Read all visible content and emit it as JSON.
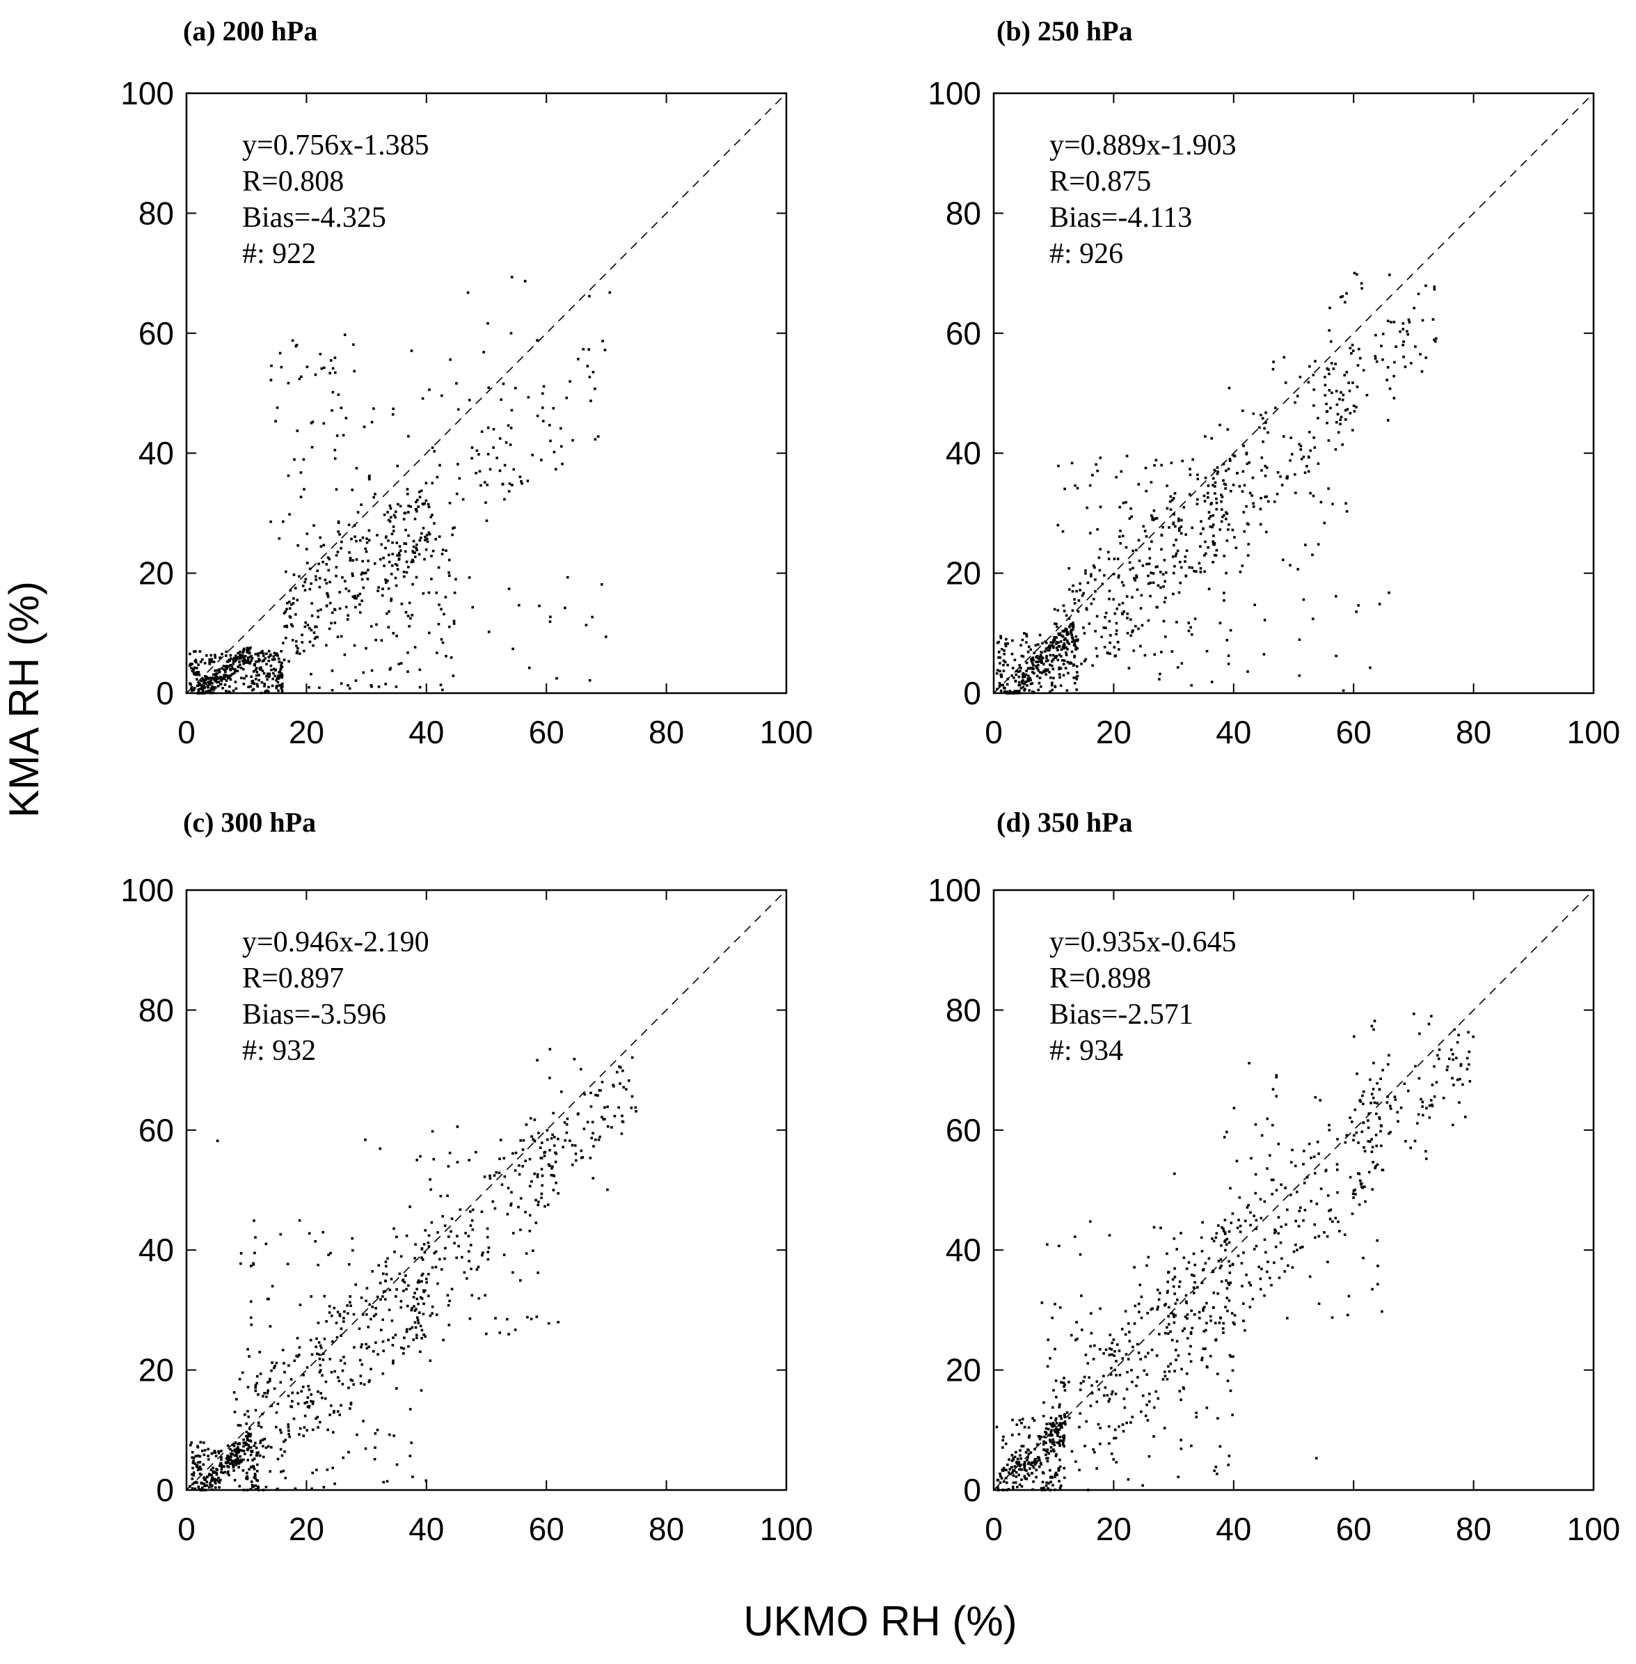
{
  "figure": {
    "ylabel": "KMA RH (%)",
    "xlabel": "UKMO RH (%)",
    "ink_color": "#000000",
    "background": "#ffffff"
  },
  "chart_data": [
    {
      "type": "scatter",
      "panel": "a",
      "title": "(a) 200 hPa",
      "xlim": [
        0,
        100
      ],
      "ylim": [
        0,
        100
      ],
      "xticks": [
        0,
        20,
        40,
        60,
        80,
        100
      ],
      "yticks": [
        0,
        20,
        40,
        60,
        80,
        100
      ],
      "reference_line": "1:1 dashed",
      "stats": {
        "equation": "y=0.756x-1.385",
        "r": "R=0.808",
        "bias": "Bias=-4.325",
        "count": "#: 922"
      },
      "n_points": 922,
      "slope": 0.756,
      "intercept": -1.385,
      "clusters": [
        {
          "x": [
            0.5,
            16
          ],
          "y": [
            0,
            7
          ],
          "count": 380
        },
        {
          "x": [
            16,
            45
          ],
          "y": [
            0,
            30
          ],
          "count": 320
        },
        {
          "x": [
            14,
            55
          ],
          "y": [
            25,
            60
          ],
          "count": 130
        },
        {
          "x": [
            45,
            72
          ],
          "y": [
            35,
            72
          ],
          "count": 60
        },
        {
          "x": [
            28,
            70
          ],
          "y": [
            0,
            20
          ],
          "count": 32
        }
      ]
    },
    {
      "type": "scatter",
      "panel": "b",
      "title": "(b) 250 hPa",
      "xlim": [
        0,
        100
      ],
      "ylim": [
        0,
        100
      ],
      "xticks": [
        0,
        20,
        40,
        60,
        80,
        100
      ],
      "yticks": [
        0,
        20,
        40,
        60,
        80,
        100
      ],
      "reference_line": "1:1 dashed",
      "stats": {
        "equation": "y=0.889x-1.903",
        "r": "R=0.875",
        "bias": "Bias=-4.113",
        "count": "#: 926"
      },
      "n_points": 926,
      "slope": 0.889,
      "intercept": -1.903,
      "clusters": [
        {
          "x": [
            0.5,
            14
          ],
          "y": [
            0,
            10
          ],
          "count": 300
        },
        {
          "x": [
            10,
            40
          ],
          "y": [
            0,
            40
          ],
          "count": 360
        },
        {
          "x": [
            35,
            60
          ],
          "y": [
            20,
            58
          ],
          "count": 160
        },
        {
          "x": [
            55,
            74
          ],
          "y": [
            45,
            71
          ],
          "count": 80
        },
        {
          "x": [
            30,
            66
          ],
          "y": [
            0,
            25
          ],
          "count": 26
        }
      ]
    },
    {
      "type": "scatter",
      "panel": "c",
      "title": "(c) 300 hPa",
      "xlim": [
        0,
        100
      ],
      "ylim": [
        0,
        100
      ],
      "xticks": [
        0,
        20,
        40,
        60,
        80,
        100
      ],
      "yticks": [
        0,
        20,
        40,
        60,
        80,
        100
      ],
      "reference_line": "1:1 dashed",
      "stats": {
        "equation": "y=0.946x-2.190",
        "r": "R=0.897",
        "bias": "Bias=-3.596",
        "count": "#: 932"
      },
      "n_points": 932,
      "slope": 0.946,
      "intercept": -2.19,
      "clusters": [
        {
          "x": [
            0.5,
            12
          ],
          "y": [
            0,
            8
          ],
          "count": 260
        },
        {
          "x": [
            8,
            40
          ],
          "y": [
            0,
            45
          ],
          "count": 380
        },
        {
          "x": [
            38,
            62
          ],
          "y": [
            25,
            62
          ],
          "count": 180
        },
        {
          "x": [
            58,
            75
          ],
          "y": [
            50,
            75
          ],
          "count": 90
        },
        {
          "x": [
            2,
            56
          ],
          "y": [
            0,
            66
          ],
          "count": 22
        }
      ]
    },
    {
      "type": "scatter",
      "panel": "d",
      "title": "(d) 350 hPa",
      "xlim": [
        0,
        100
      ],
      "ylim": [
        0,
        100
      ],
      "xticks": [
        0,
        20,
        40,
        60,
        80,
        100
      ],
      "yticks": [
        0,
        20,
        40,
        60,
        80,
        100
      ],
      "reference_line": "1:1 dashed",
      "stats": {
        "equation": "y=0.935x-0.645",
        "r": "R=0.898",
        "bias": "Bias=-2.571",
        "count": "#: 934"
      },
      "n_points": 934,
      "slope": 0.935,
      "intercept": -0.645,
      "clusters": [
        {
          "x": [
            0.5,
            12
          ],
          "y": [
            0,
            12
          ],
          "count": 230
        },
        {
          "x": [
            8,
            40
          ],
          "y": [
            0,
            45
          ],
          "count": 380
        },
        {
          "x": [
            38,
            65
          ],
          "y": [
            28,
            70
          ],
          "count": 200
        },
        {
          "x": [
            60,
            80
          ],
          "y": [
            55,
            80
          ],
          "count": 100
        },
        {
          "x": [
            5,
            60
          ],
          "y": [
            0,
            74
          ],
          "count": 24
        }
      ]
    }
  ]
}
